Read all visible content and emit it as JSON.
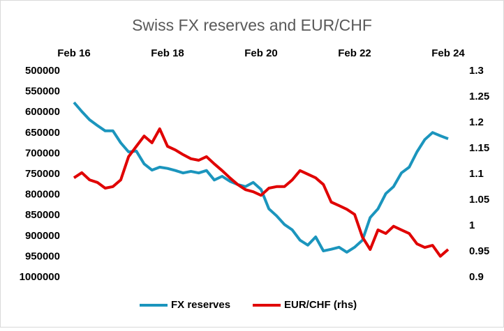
{
  "chart_data": {
    "type": "line",
    "title": "Swiss FX reserves and EUR/CHF",
    "categories": [
      "Feb 16",
      null,
      null,
      null,
      null,
      null,
      null,
      null,
      null,
      null,
      null,
      null,
      "Feb 18",
      null,
      null,
      null,
      null,
      null,
      null,
      null,
      null,
      null,
      null,
      null,
      "Feb 20",
      null,
      null,
      null,
      null,
      null,
      null,
      null,
      null,
      null,
      null,
      null,
      "Feb 22",
      null,
      null,
      null,
      null,
      null,
      null,
      null,
      null,
      null,
      null,
      null,
      "Feb 24"
    ],
    "series": [
      {
        "name": "FX reserves",
        "color": "#1b95bd",
        "values": [
          576000,
          598000,
          618000,
          632000,
          645000,
          645000,
          674000,
          696000,
          694000,
          725000,
          740000,
          733000,
          736000,
          741000,
          747000,
          743000,
          747000,
          741000,
          764000,
          755000,
          767000,
          775000,
          780000,
          770000,
          787000,
          834000,
          851000,
          872000,
          885000,
          910000,
          922000,
          902000,
          936000,
          932000,
          927000,
          939000,
          927000,
          910000,
          855000,
          834000,
          797000,
          780000,
          747000,
          733000,
          696000,
          666000,
          649000,
          657000,
          664000
        ]
      },
      {
        "name": "EUR/CHF (rhs)",
        "color": "#e00000",
        "axis": "y2",
        "values": [
          1.093,
          1.103,
          1.089,
          1.084,
          1.073,
          1.076,
          1.089,
          1.134,
          1.154,
          1.174,
          1.161,
          1.188,
          1.154,
          1.147,
          1.138,
          1.13,
          1.127,
          1.134,
          1.12,
          1.107,
          1.093,
          1.08,
          1.07,
          1.066,
          1.059,
          1.073,
          1.076,
          1.076,
          1.089,
          1.107,
          1.1,
          1.093,
          1.08,
          1.046,
          1.039,
          1.032,
          1.022,
          0.978,
          0.954,
          0.992,
          0.985,
          0.999,
          0.992,
          0.985,
          0.965,
          0.958,
          0.962,
          0.941,
          0.954
        ]
      }
    ],
    "ylim": [
      500000,
      1000000
    ],
    "y_inverted": true,
    "yticks": [
      500000,
      550000,
      600000,
      650000,
      700000,
      750000,
      800000,
      850000,
      900000,
      950000,
      1000000
    ],
    "y2lim": [
      0.9,
      1.3
    ],
    "y2ticks": [
      1.3,
      1.25,
      1.2,
      1.15,
      1.1,
      1.05,
      1,
      0.95,
      0.9
    ],
    "grid": false,
    "legend": "bottom"
  }
}
